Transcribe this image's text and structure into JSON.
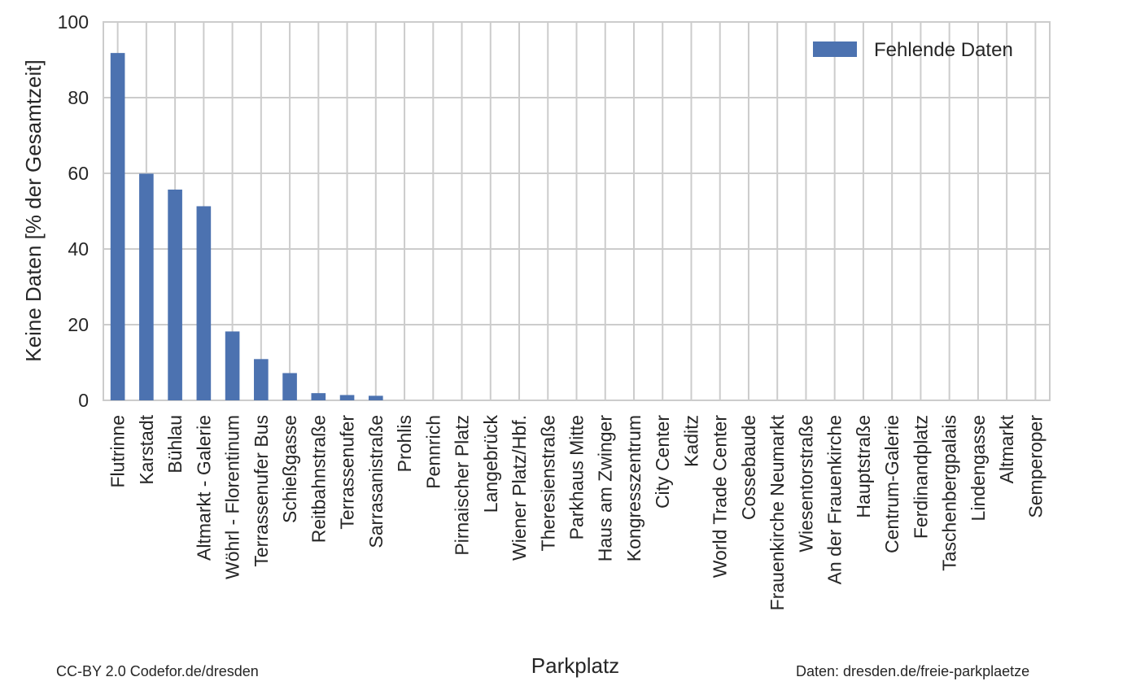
{
  "chart_data": {
    "type": "bar",
    "xlabel": "Parkplatz",
    "ylabel": "Keine Daten [% der Gesamtzeit]",
    "ylim": [
      0,
      100
    ],
    "yticks": [
      0,
      20,
      40,
      60,
      80,
      100
    ],
    "grid": true,
    "legend_position": "top-right",
    "categories": [
      "Flutrinne",
      "Karstadt",
      "Bühlau",
      "Altmarkt - Galerie",
      "Wöhrl - Florentinum",
      "Terrassenufer Bus",
      "Schießgasse",
      "Reitbahnstraße",
      "Terrassenufer",
      "Sarrasanistraße",
      "Prohlis",
      "Pennrich",
      "Pirnaischer Platz",
      "Langebrück",
      "Wiener Platz/Hbf.",
      "Theresienstraße",
      "Parkhaus Mitte",
      "Haus am Zwinger",
      "Kongresszentrum",
      "City  Center",
      "Kaditz",
      "World Trade Center",
      "Cossebaude",
      "Frauenkirche Neumarkt",
      "Wiesentorstraße",
      "An der Frauenkirche",
      "Hauptstraße",
      "Centrum-Galerie",
      "Ferdinandplatz",
      "Taschenbergpalais",
      "Lindengasse",
      "Altmarkt",
      "Semperoper"
    ],
    "series": [
      {
        "name": "Fehlende Daten",
        "color": "#4c72b0",
        "values": [
          91.8,
          59.9,
          55.7,
          51.3,
          18.2,
          10.9,
          7.2,
          1.9,
          1.4,
          1.2,
          0,
          0,
          0,
          0,
          0,
          0,
          0,
          0,
          0,
          0,
          0,
          0,
          0,
          0,
          0,
          0,
          0,
          0,
          0,
          0,
          0,
          0,
          0
        ]
      }
    ]
  },
  "footer": {
    "license": "CC-BY 2.0 Codefor.de/dresden",
    "source": "Daten: dresden.de/freie-parkplaetze"
  }
}
